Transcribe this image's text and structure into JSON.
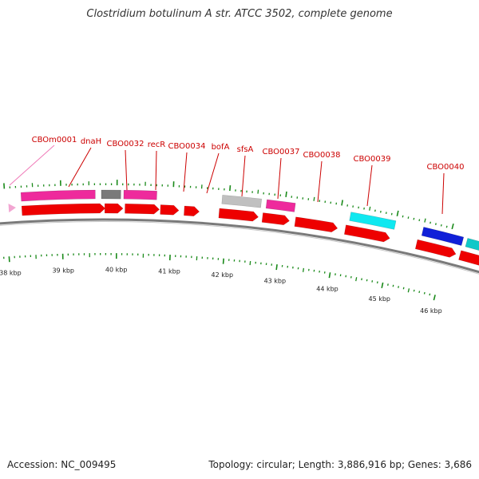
{
  "title": "Clostridium botulinum A str. ATCC 3502, complete genome",
  "footer": {
    "accession": "Accession: NC_009495",
    "topology": "Topology: circular; Length: 3,886,916 bp; Genes: 3,686"
  },
  "colors": {
    "cds_red": "#ee0000",
    "pink": "#ee2a9c",
    "light_pink": "#f2a6d2",
    "gray": "#7a7a7a",
    "light_gray": "#c0c0c0",
    "cyan": "#10e8f0",
    "blue": "#1020d8",
    "teal": "#10c8c8",
    "label_red": "#cc0000",
    "tick_green": "#1a8a1a",
    "backbone": "#7a7a7a"
  },
  "gene_labels": [
    {
      "name": "CBOm0001",
      "color": "#f07ab8"
    },
    {
      "name": "dnaH",
      "color": "#cc0000"
    },
    {
      "name": "CBO0032",
      "color": "#cc0000"
    },
    {
      "name": "recR",
      "color": "#cc0000"
    },
    {
      "name": "CBO0034",
      "color": "#cc0000"
    },
    {
      "name": "bofA",
      "color": "#cc0000"
    },
    {
      "name": "sfsA",
      "color": "#cc0000"
    },
    {
      "name": "CBO0037",
      "color": "#cc0000"
    },
    {
      "name": "CBO0038",
      "color": "#cc0000"
    },
    {
      "name": "CBO0039",
      "color": "#cc0000"
    },
    {
      "name": "CBO0040",
      "color": "#cc0000"
    }
  ],
  "kbp_labels": [
    "38 kbp",
    "39 kbp",
    "40 kbp",
    "41 kbp",
    "42 kbp",
    "43 kbp",
    "44 kbp",
    "45 kbp",
    "46 kbp"
  ]
}
